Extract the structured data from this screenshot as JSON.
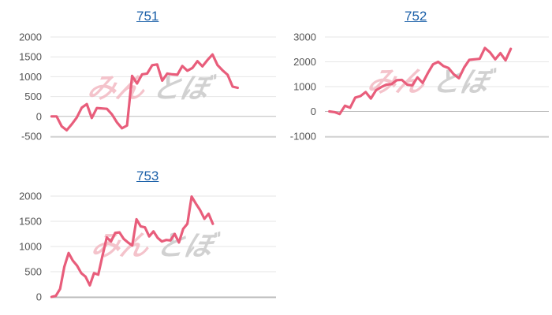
{
  "colors": {
    "line": "#e85d7b",
    "grid": "#e6e6e6",
    "axis": "#bbbbbb",
    "title_link": "#1a5fa8",
    "tick_text": "#555555",
    "watermark_pink": "#f2b8c2",
    "watermark_gray": "#c9c9c9"
  },
  "watermark": {
    "text_left": "みん",
    "text_right": "とぼ"
  },
  "chart_data": [
    {
      "type": "line",
      "title": "751",
      "ylim": [
        -500,
        2000
      ],
      "yticks": [
        "2000",
        "1500",
        "1000",
        "500",
        "0",
        "-500"
      ],
      "ytick_values": [
        2000,
        1500,
        1000,
        500,
        0,
        -500
      ],
      "grid": true,
      "series": [
        {
          "values": [
            0,
            0,
            -250,
            -350,
            -200,
            -30,
            220,
            310,
            -40,
            210,
            200,
            190,
            50,
            -150,
            -300,
            -230,
            1020,
            830,
            1060,
            1080,
            1290,
            1310,
            900,
            1080,
            1060,
            1050,
            1270,
            1150,
            1220,
            1390,
            1260,
            1420,
            1560,
            1290,
            1160,
            1050,
            750,
            720
          ]
        }
      ]
    },
    {
      "type": "line",
      "title": "752",
      "ylim": [
        -1000,
        3000
      ],
      "yticks": [
        "3000",
        "2000",
        "1000",
        "0",
        "-1000"
      ],
      "ytick_values": [
        3000,
        2000,
        1000,
        0,
        -1000
      ],
      "grid": true,
      "series": [
        {
          "values": [
            0,
            -30,
            -100,
            230,
            150,
            560,
            620,
            780,
            520,
            850,
            980,
            1080,
            1100,
            1260,
            1270,
            1080,
            1050,
            1370,
            1150,
            1550,
            1900,
            2000,
            1830,
            1750,
            1500,
            1340,
            1770,
            2080,
            2100,
            2120,
            2560,
            2380,
            2100,
            2350,
            2060,
            2520
          ]
        }
      ]
    },
    {
      "type": "line",
      "title": "753",
      "ylim": [
        0,
        2000
      ],
      "yticks": [
        "2000",
        "1500",
        "1000",
        "500",
        "0"
      ],
      "ytick_values": [
        2000,
        1500,
        1000,
        500,
        0
      ],
      "grid": true,
      "series": [
        {
          "values": [
            0,
            20,
            160,
            600,
            870,
            720,
            620,
            470,
            400,
            230,
            470,
            440,
            820,
            1180,
            1100,
            1270,
            1280,
            1150,
            1080,
            1020,
            1540,
            1400,
            1380,
            1200,
            1300,
            1170,
            1100,
            1130,
            1120,
            1250,
            1080,
            1350,
            1450,
            1990,
            1850,
            1720,
            1550,
            1650,
            1450
          ]
        }
      ]
    }
  ]
}
